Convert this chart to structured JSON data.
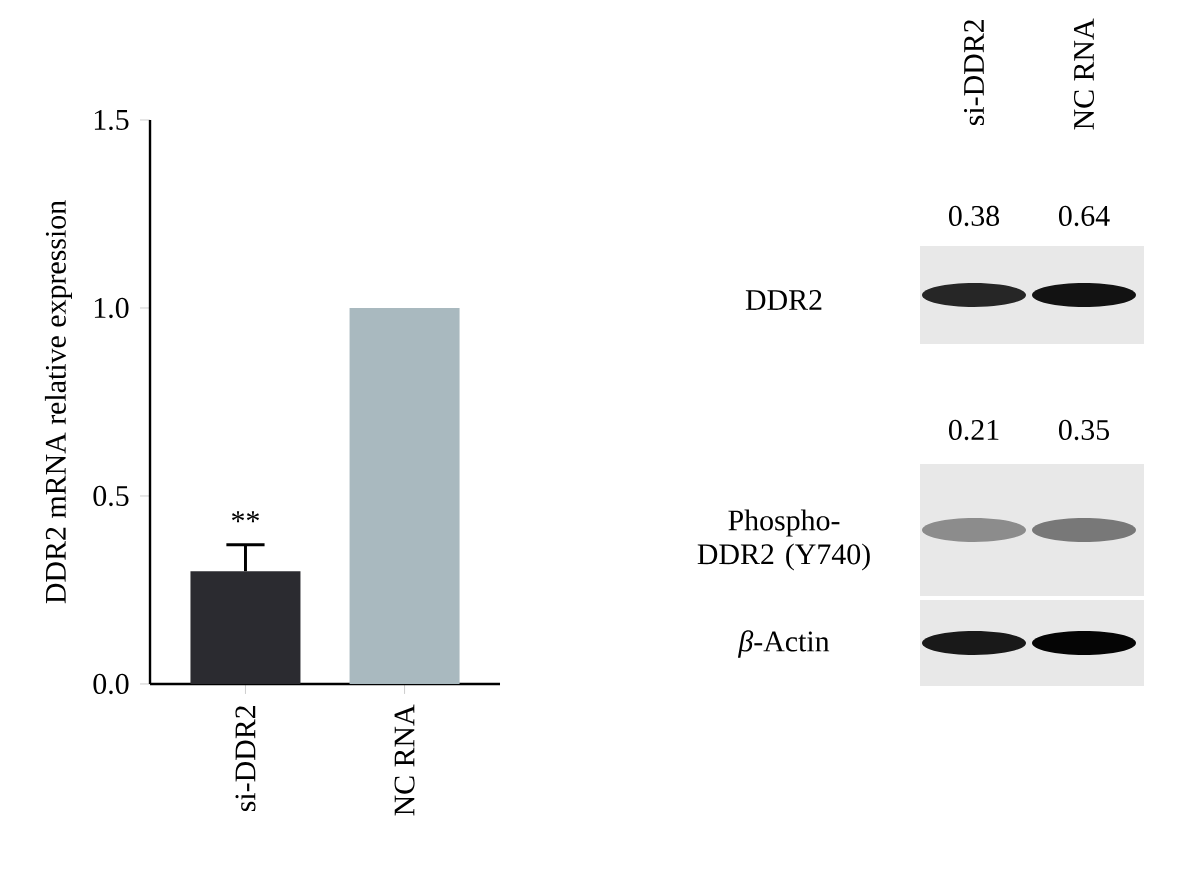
{
  "chart_data": [
    {
      "type": "bar",
      "ylabel": "DDR2 mRNA relative expression",
      "categories": [
        "si-DDR2",
        "NC RNA"
      ],
      "values": [
        0.3,
        1.0
      ],
      "colors": [
        "#2b2b30",
        "#a9b9bf"
      ],
      "errors": [
        [
          0.3,
          0.37
        ],
        null
      ],
      "ylim": [
        0,
        1.5
      ],
      "yticks": [
        {
          "value": 0,
          "label": "0.0"
        },
        {
          "value": 0.5,
          "label": "0.5"
        },
        {
          "value": 1.0,
          "label": "1.0"
        },
        {
          "value": 1.5,
          "label": "1.5"
        }
      ],
      "annotations": [
        "**"
      ]
    },
    {
      "type": "other",
      "categories": [
        "si-DDR2",
        "NC RNA"
      ],
      "y_categories": [
        "DDR2",
        "Phospho-DDR2 (Y740)",
        "*β*-Actin"
      ],
      "cell_labels": [
        [
          "0.38",
          "0.64"
        ],
        [
          "0.21",
          "0.35"
        ],
        [
          null,
          null
        ]
      ]
    }
  ]
}
